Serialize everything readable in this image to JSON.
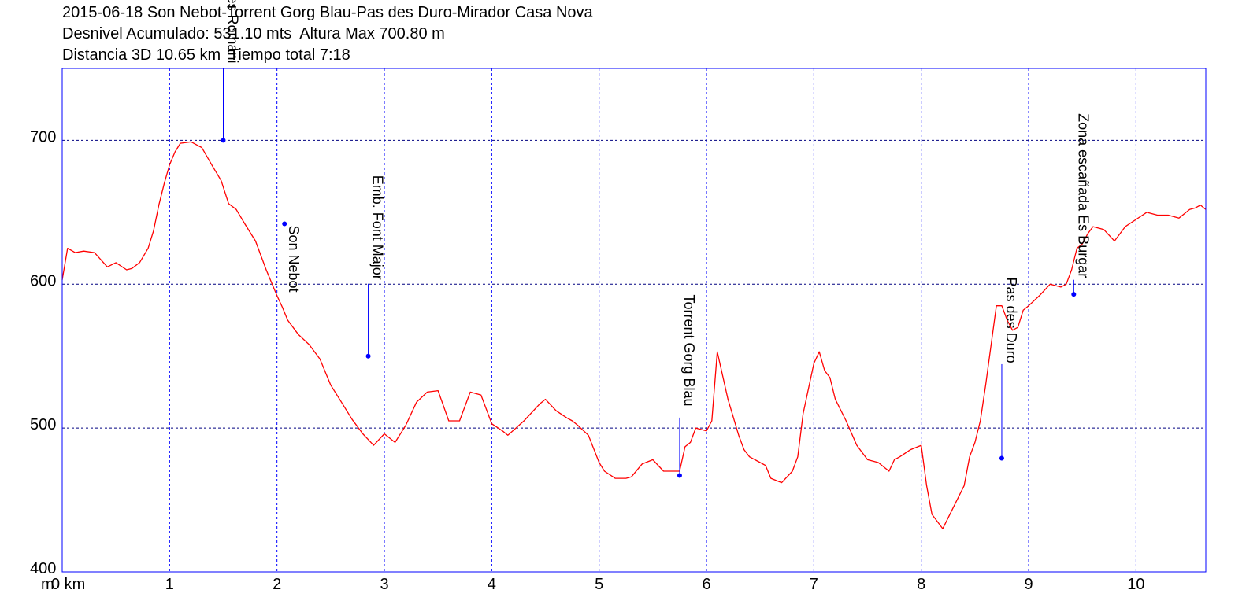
{
  "header": {
    "line1": "2015-06-18 Son Nebot-Torrent Gorg Blau-Pas des Duro-Mirador Casa Nova",
    "line2": "Desnivel Acumulado: 531.10 mts  Altura Max 700.80 m",
    "line3": "Distancia 3D 10.65 km  Tiempo total 7:18"
  },
  "chart_data": {
    "type": "line",
    "title": "2015-06-18 Son Nebot-Torrent Gorg Blau-Pas des Duro-Mirador Casa Nova",
    "xlabel": "km",
    "ylabel": "m",
    "xlim": [
      0,
      10.65
    ],
    "ylim": [
      400,
      750
    ],
    "grid": true,
    "colors": {
      "frame": "#0000ff",
      "grid_x": "#0000ff",
      "grid_y": "#000080",
      "profile": "#ff0000",
      "waypoint": "#0000ff"
    },
    "x_ticks": [
      {
        "v": 0,
        "label": "0 km"
      },
      {
        "v": 1,
        "label": "1"
      },
      {
        "v": 2,
        "label": "2"
      },
      {
        "v": 3,
        "label": "3"
      },
      {
        "v": 4,
        "label": "4"
      },
      {
        "v": 5,
        "label": "5"
      },
      {
        "v": 6,
        "label": "6"
      },
      {
        "v": 7,
        "label": "7"
      },
      {
        "v": 8,
        "label": "8"
      },
      {
        "v": 9,
        "label": "9"
      },
      {
        "v": 10,
        "label": "10"
      }
    ],
    "y_ticks": [
      {
        "v": 400,
        "label": "400"
      },
      {
        "v": 500,
        "label": "500"
      },
      {
        "v": 600,
        "label": "600"
      },
      {
        "v": 700,
        "label": "700"
      }
    ],
    "y_unit_label": "m",
    "series": [
      {
        "x": [
          0,
          0.05,
          0.12,
          0.2,
          0.3,
          0.42,
          0.5,
          0.6,
          0.65,
          0.72,
          0.8,
          0.85,
          0.9,
          0.95,
          1.0,
          1.05,
          1.1,
          1.2,
          1.3,
          1.4,
          1.48,
          1.55,
          1.62,
          1.7,
          1.8,
          1.9,
          2.0,
          2.05,
          2.1,
          2.2,
          2.3,
          2.4,
          2.5,
          2.6,
          2.7,
          2.8,
          2.85,
          2.9,
          3.0,
          3.1,
          3.2,
          3.3,
          3.4,
          3.5,
          3.6,
          3.7,
          3.8,
          3.9,
          4.0,
          4.1,
          4.15,
          4.3,
          4.45,
          4.5,
          4.6,
          4.7,
          4.75,
          4.8,
          4.9,
          5.0,
          5.05,
          5.15,
          5.25,
          5.3,
          5.4,
          5.5,
          5.6,
          5.7,
          5.75,
          5.8,
          5.85,
          5.9,
          6.0,
          6.05,
          6.1,
          6.2,
          6.3,
          6.35,
          6.4,
          6.5,
          6.55,
          6.6,
          6.7,
          6.8,
          6.85,
          6.9,
          7.0,
          7.05,
          7.1,
          7.15,
          7.2,
          7.3,
          7.4,
          7.5,
          7.6,
          7.7,
          7.75,
          7.8,
          7.9,
          8.0,
          8.05,
          8.1,
          8.2,
          8.3,
          8.4,
          8.45,
          8.5,
          8.55,
          8.6,
          8.7,
          8.75,
          8.8,
          8.85,
          8.9,
          8.95,
          9.0,
          9.1,
          9.2,
          9.3,
          9.35,
          9.4,
          9.45,
          9.5,
          9.55,
          9.6,
          9.7,
          9.8,
          9.9,
          10.0,
          10.1,
          10.2,
          10.3,
          10.4,
          10.5,
          10.55,
          10.6,
          10.65
        ],
        "y": [
          603,
          625,
          622,
          623,
          622,
          612,
          615,
          610,
          611,
          615,
          625,
          637,
          655,
          670,
          683,
          692,
          698,
          699,
          695,
          682,
          672,
          656,
          652,
          642,
          630,
          610,
          592,
          584,
          575,
          565,
          558,
          548,
          530,
          518,
          506,
          496,
          492,
          488,
          496,
          490,
          502,
          518,
          525,
          526,
          505,
          505,
          525,
          523,
          503,
          498,
          495,
          505,
          517,
          520,
          512,
          507,
          505,
          502,
          495,
          476,
          470,
          465,
          465,
          466,
          475,
          478,
          470,
          470,
          470,
          487,
          490,
          500,
          498,
          505,
          553,
          520,
          495,
          485,
          480,
          476,
          474,
          465,
          462,
          470,
          480,
          510,
          545,
          553,
          540,
          535,
          520,
          505,
          488,
          478,
          476,
          470,
          478,
          480,
          485,
          488,
          460,
          440,
          430,
          445,
          460,
          480,
          490,
          505,
          530,
          585,
          585,
          575,
          568,
          570,
          582,
          585,
          592,
          600,
          598,
          600,
          610,
          625,
          628,
          635,
          640,
          638,
          630,
          640,
          645,
          650,
          648,
          648,
          646,
          652,
          653,
          655,
          652
        ]
      }
    ],
    "waypoints": [
      {
        "x": 1.5,
        "y": 700,
        "label": "Coll des Romani"
      },
      {
        "x": 2.07,
        "y": 642,
        "label": "Son Nebot"
      },
      {
        "x": 2.85,
        "y": 550,
        "label": "Emb. Font Major"
      },
      {
        "x": 5.75,
        "y": 467,
        "label": "Torrent Gorg Blau"
      },
      {
        "x": 8.75,
        "y": 479,
        "label": "Pas des Duro"
      },
      {
        "x": 9.42,
        "y": 593,
        "label": "Zona escañada Es Burgar"
      }
    ]
  }
}
